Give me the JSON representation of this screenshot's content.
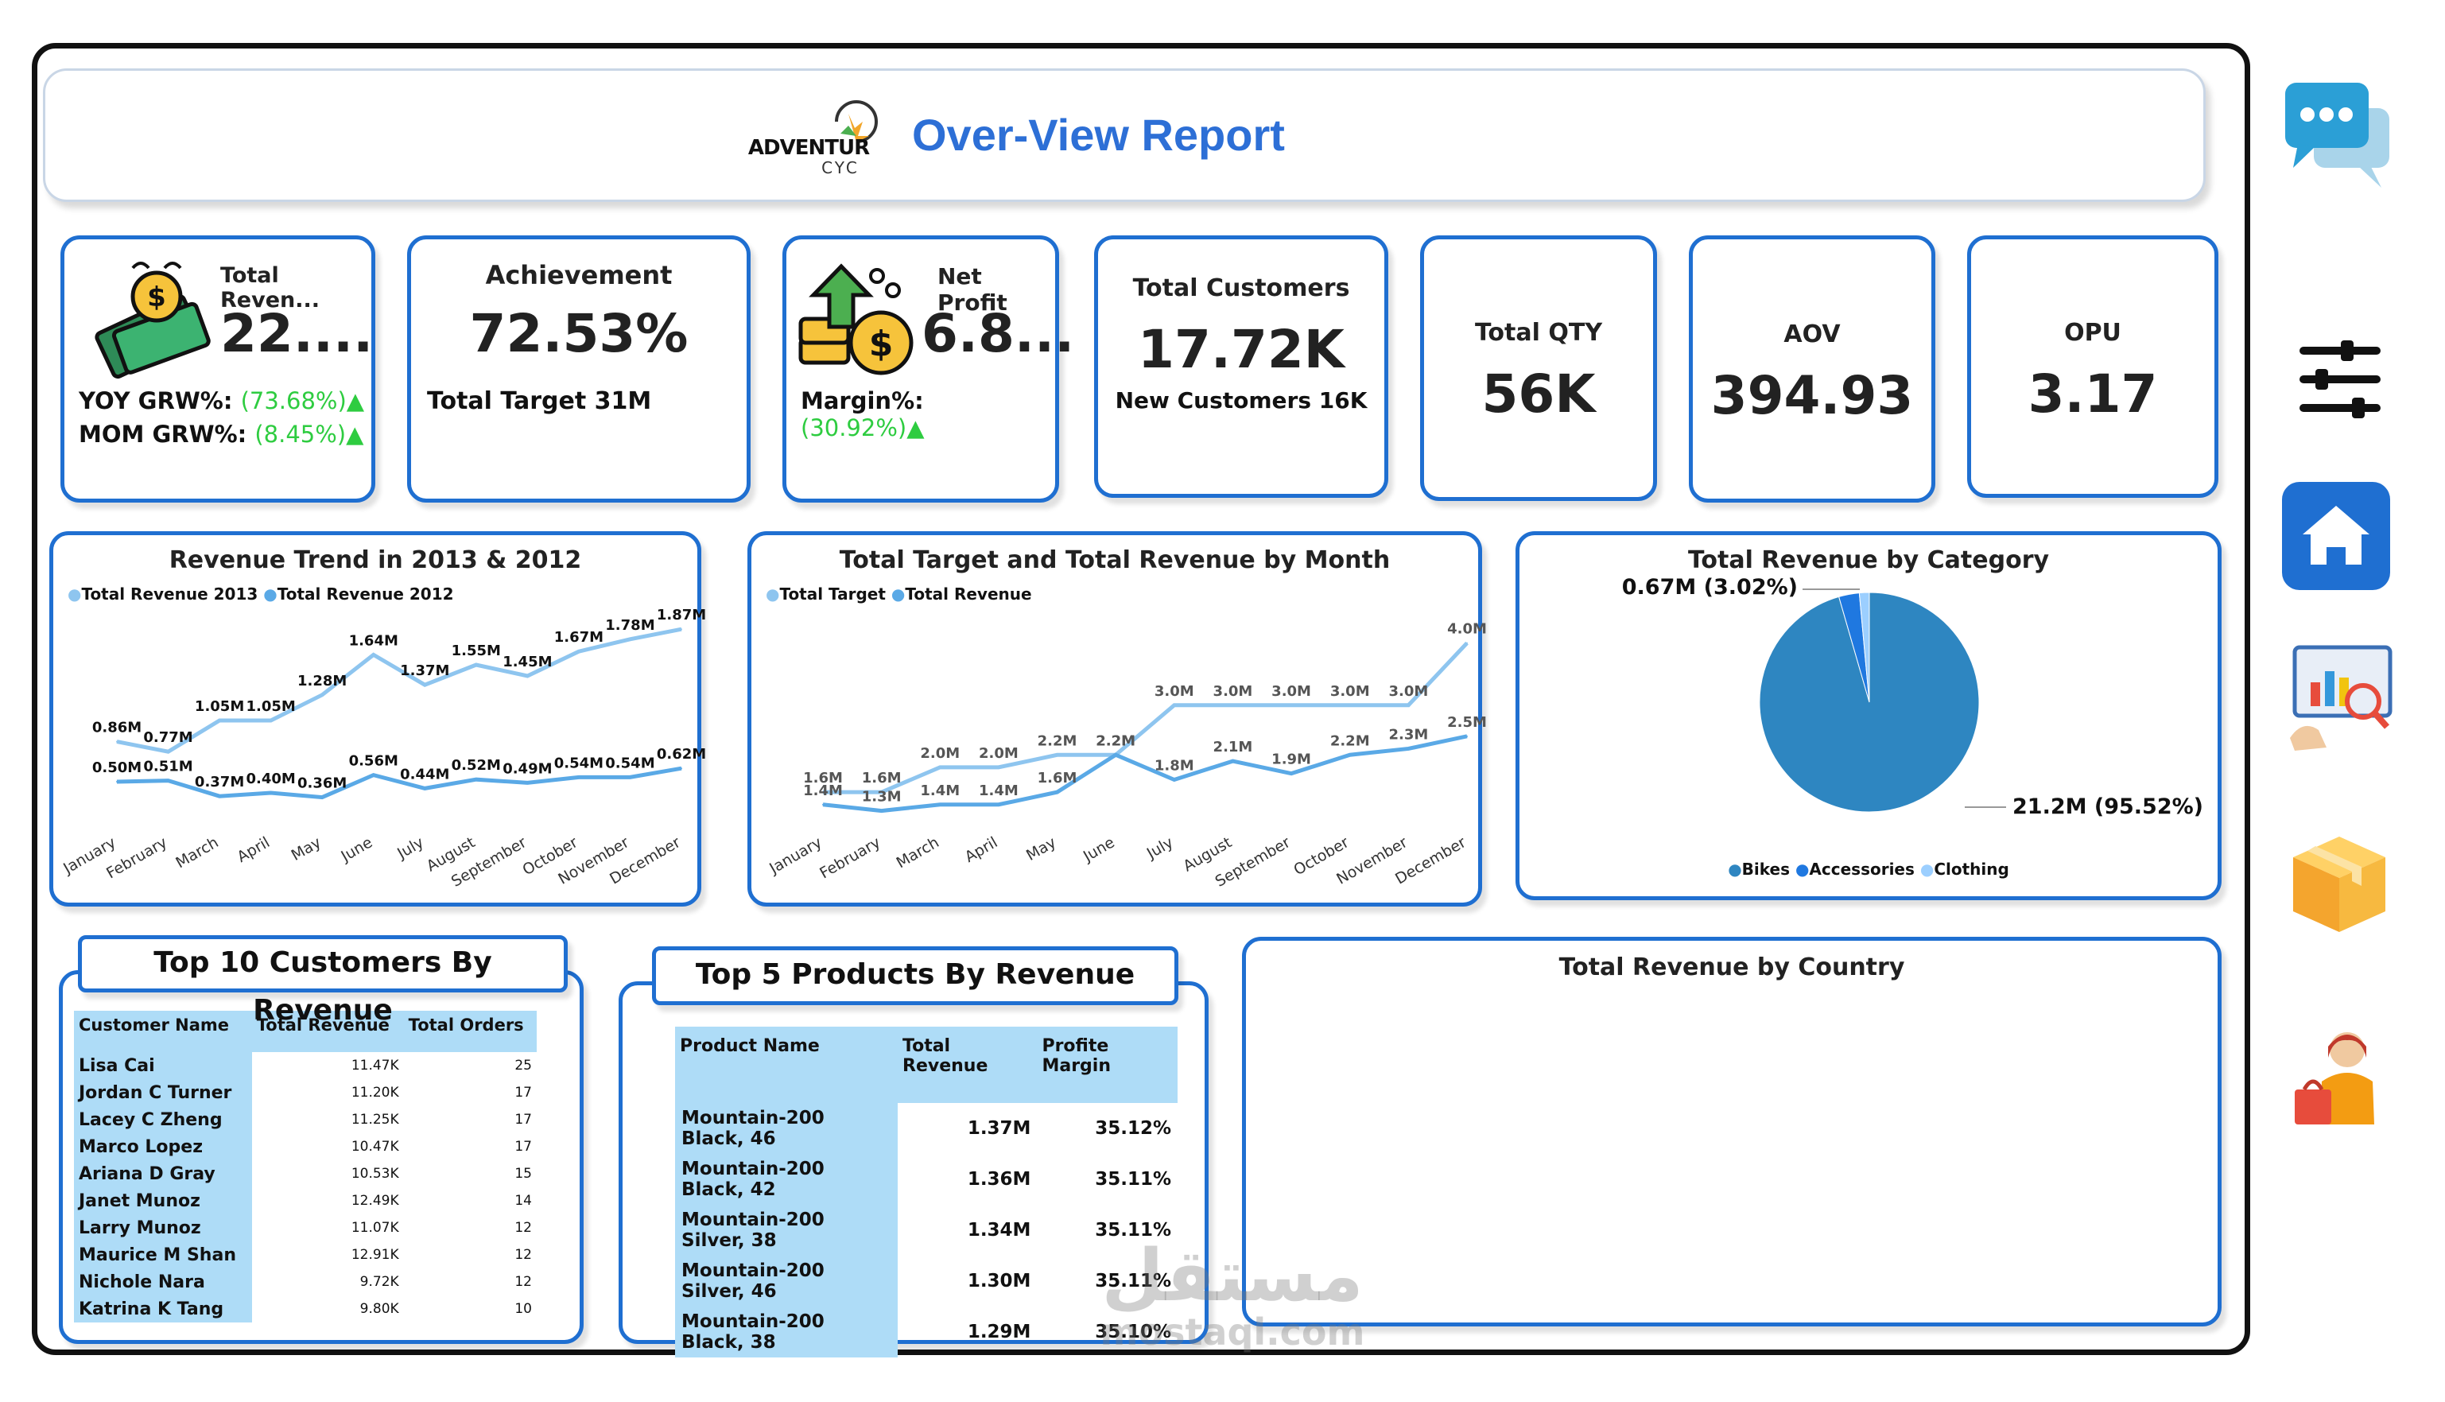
{
  "header": {
    "logo_line1": "ADVENTUR",
    "logo_line2": "CYC",
    "title": "Over-View Report"
  },
  "kpis": {
    "revenue": {
      "title": "Total Reven...",
      "value": "22....",
      "yoy_label": "YOY GRW%:",
      "yoy_value": "(73.68%)▲",
      "mom_label": "MOM GRW%:",
      "mom_value": "(8.45%)▲"
    },
    "achievement": {
      "title": "Achievement",
      "value": "72.53%",
      "sub": "Total Target 31M"
    },
    "net_profit": {
      "title": "Net Profit",
      "value": "6.8...",
      "margin_label": "Margin%:",
      "margin_value": "(30.92%)▲"
    },
    "customers": {
      "title": "Total Customers",
      "value": "17.72K",
      "sub": "New Customers 16K"
    },
    "qty": {
      "title": "Total QTY",
      "value": "56K"
    },
    "aov": {
      "title": "AOV",
      "value": "394.93"
    },
    "opu": {
      "title": "OPU",
      "value": "3.17"
    }
  },
  "colors": {
    "accent": "#1f6fd1",
    "line_light": "#8ec5ef",
    "line_mid": "#5aa9e6",
    "pie_bikes": "#2e86c1",
    "pie_acc": "#1f78e0",
    "pie_cloth": "#9ccfff",
    "table_header": "#aedcf7",
    "green": "#2ecc40"
  },
  "chart_data": [
    {
      "type": "line",
      "title": "Revenue Trend in 2013 & 2012",
      "categories": [
        "January",
        "February",
        "March",
        "April",
        "May",
        "June",
        "July",
        "August",
        "September",
        "October",
        "November",
        "December"
      ],
      "series": [
        {
          "name": "Total Revenue 2013",
          "values": [
            0.86,
            0.77,
            1.05,
            1.05,
            1.28,
            1.64,
            1.37,
            1.55,
            1.45,
            1.67,
            1.78,
            1.87
          ],
          "labels": [
            "0.86M",
            "0.77M",
            "1.05M",
            "1.05M",
            "1.28M",
            "1.64M",
            "1.37M",
            "1.55M",
            "1.45M",
            "1.67M",
            "1.78M",
            "1.87M"
          ]
        },
        {
          "name": "Total Revenue 2012",
          "values": [
            0.5,
            0.51,
            0.37,
            0.4,
            0.36,
            0.56,
            0.44,
            0.52,
            0.49,
            0.54,
            0.54,
            0.62
          ],
          "labels": [
            "0.50M",
            "0.51M",
            "0.37M",
            "0.40M",
            "0.36M",
            "0.56M",
            "0.44M",
            "0.52M",
            "0.49M",
            "0.54M",
            "0.54M",
            "0.62M"
          ]
        }
      ],
      "ylim": [
        0,
        2.0
      ]
    },
    {
      "type": "line",
      "title": "Total Target and Total Revenue by Month",
      "categories": [
        "January",
        "February",
        "March",
        "April",
        "May",
        "June",
        "July",
        "August",
        "September",
        "October",
        "November",
        "December"
      ],
      "series": [
        {
          "name": "Total Target",
          "values": [
            1.6,
            1.6,
            2.0,
            2.0,
            2.2,
            2.2,
            3.0,
            3.0,
            3.0,
            3.0,
            3.0,
            4.0
          ],
          "labels": [
            "1.6M",
            "1.6M",
            "2.0M",
            "2.0M",
            "2.2M",
            "2.2M",
            "3.0M",
            "3.0M",
            "3.0M",
            "3.0M",
            "3.0M",
            "4.0M"
          ]
        },
        {
          "name": "Total Revenue",
          "values": [
            1.4,
            1.3,
            1.4,
            1.4,
            1.6,
            2.2,
            1.8,
            2.1,
            1.9,
            2.2,
            2.3,
            2.5
          ],
          "labels": [
            "1.4M",
            "1.3M",
            "1.4M",
            "1.4M",
            "1.6M",
            "2.2M",
            "1.8M",
            "2.1M",
            "1.9M",
            "2.2M",
            "2.3M",
            "2.5M"
          ]
        }
      ],
      "ylim": [
        1.0,
        4.2
      ]
    },
    {
      "type": "pie",
      "title": "Total Revenue by Category",
      "slices": [
        {
          "name": "Bikes",
          "value": 95.52,
          "label": "21.2M (95.52%)"
        },
        {
          "name": "Accessories",
          "value": 3.02,
          "label": "0.67M (3.02%)"
        },
        {
          "name": "Clothing",
          "value": 1.46
        }
      ],
      "legend": [
        "Bikes",
        "Accessories",
        "Clothing"
      ]
    },
    {
      "type": "table",
      "title": "Top 10 Customers By Revenue",
      "columns": [
        "Customer Name",
        "Total Revenue",
        "Total Orders"
      ],
      "rows": [
        [
          "Lisa Cai",
          "11.47K",
          "25"
        ],
        [
          "Jordan C Turner",
          "11.20K",
          "17"
        ],
        [
          "Lacey C Zheng",
          "11.25K",
          "17"
        ],
        [
          "Marco Lopez",
          "10.47K",
          "17"
        ],
        [
          "Ariana D Gray",
          "10.53K",
          "15"
        ],
        [
          "Janet Munoz",
          "12.49K",
          "14"
        ],
        [
          "Larry Munoz",
          "11.07K",
          "12"
        ],
        [
          "Maurice M Shan",
          "12.91K",
          "12"
        ],
        [
          "Nichole Nara",
          "9.72K",
          "12"
        ],
        [
          "Katrina K Tang",
          "9.80K",
          "10"
        ]
      ]
    },
    {
      "type": "table",
      "title": "Top 5 Products By Revenue",
      "columns": [
        "Product Name",
        "Total Revenue",
        "Profite Margin"
      ],
      "rows": [
        [
          "Mountain-200 Black, 46",
          "1.37M",
          "35.12%"
        ],
        [
          "Mountain-200 Black, 42",
          "1.36M",
          "35.11%"
        ],
        [
          "Mountain-200 Silver, 38",
          "1.34M",
          "35.11%"
        ],
        [
          "Mountain-200 Silver, 46",
          "1.30M",
          "35.11%"
        ],
        [
          "Mountain-200 Black, 38",
          "1.29M",
          "35.10%"
        ]
      ]
    }
  ],
  "country_map": {
    "title": "Total Revenue by Country"
  },
  "sidebar": {
    "icons": [
      "chat-icon",
      "filter-icon",
      "home-icon",
      "analysis-icon",
      "package-icon",
      "customer-icon"
    ]
  },
  "watermark": {
    "text": "مستقل",
    "sub": "mostaql.com"
  }
}
